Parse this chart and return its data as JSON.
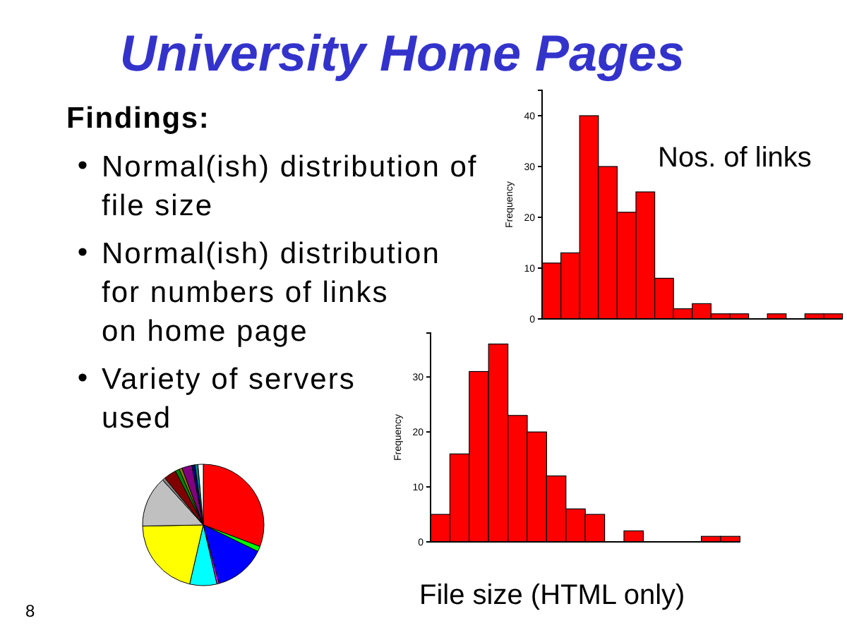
{
  "chart_data": [
    {
      "type": "other",
      "title": "University Home Pages",
      "subtitle": "Findings:",
      "annotations": [
        "Normal(ish) distribution of file size",
        "Normal(ish) distribution for numbers of links on home page",
        "Variety of servers used",
        "8"
      ]
    },
    {
      "type": "bar",
      "title": "Nos. of links",
      "ylabel": "Frequency",
      "categories": [
        null,
        null,
        null,
        null,
        null,
        null,
        null,
        null,
        null,
        null,
        null,
        null,
        null,
        null,
        null,
        null
      ],
      "values": [
        11,
        13,
        40,
        30,
        21,
        25,
        8,
        2,
        3,
        1,
        1,
        0,
        1,
        0,
        1,
        1
      ],
      "color": "#ff0000",
      "ylim": [
        0,
        45
      ],
      "yticks": [
        0,
        10,
        20,
        30,
        40
      ]
    },
    {
      "type": "bar",
      "title": "File size (HTML only)",
      "ylabel": "Frequency",
      "categories": [
        null,
        null,
        null,
        null,
        null,
        null,
        null,
        null,
        null,
        null,
        null,
        null,
        null,
        null,
        null,
        null
      ],
      "values": [
        5,
        16,
        31,
        36,
        23,
        20,
        12,
        6,
        5,
        0,
        2,
        0,
        0,
        0,
        1,
        1
      ],
      "color": "#ff0000",
      "ylim": [
        0,
        38
      ],
      "yticks": [
        0,
        10,
        20,
        30
      ]
    },
    {
      "type": "pie",
      "categories": [
        null,
        null,
        null,
        null,
        null,
        null,
        null,
        null,
        null,
        null,
        null,
        null,
        null,
        null,
        null
      ],
      "values": [
        30.8,
        1.4,
        13.6,
        0.6,
        7.2,
        21.1,
        13.6,
        0.8,
        3.3,
        1.1,
        0.8,
        2.7,
        0.8,
        0.8,
        1.4
      ],
      "colors": [
        "#ff0000",
        "#00ff00",
        "#0000ff",
        "#ff00ff",
        "#00ffff",
        "#ffff00",
        "#c0c0c0",
        "#808080",
        "#800000",
        "#008000",
        "#808000",
        "#800080",
        "#000080",
        "#008080",
        "#ffffff"
      ]
    }
  ]
}
